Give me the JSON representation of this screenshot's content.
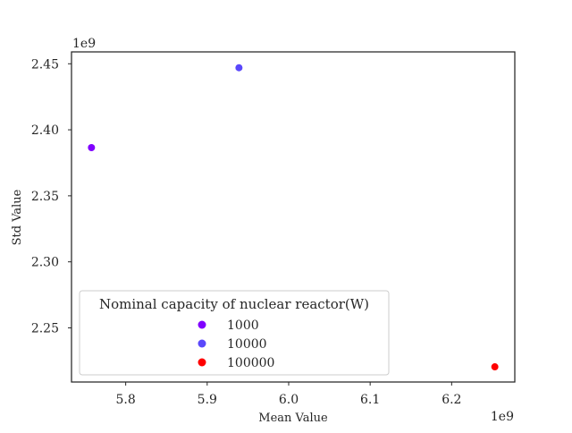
{
  "chart_data": {
    "type": "scatter",
    "xlabel": "Mean Value",
    "ylabel": "Std Value",
    "x_offset_label": "1e9",
    "y_offset_label": "1e9",
    "xlim": [
      5.7335,
      6.2775
    ],
    "ylim": [
      2.209,
      2.459
    ],
    "xticks": [
      5.8,
      5.9,
      6.0,
      6.1,
      6.2
    ],
    "xtick_labels": [
      "5.8",
      "5.9",
      "6.0",
      "6.1",
      "6.2"
    ],
    "yticks": [
      2.25,
      2.3,
      2.35,
      2.4,
      2.45
    ],
    "ytick_labels": [
      "2.25",
      "2.30",
      "2.35",
      "2.40",
      "2.45"
    ],
    "grid": false,
    "legend": {
      "title": "Nominal capacity of nuclear reactor(W)",
      "placement": "lower-left"
    },
    "series": [
      {
        "name": "1000",
        "color": "#8000ff",
        "points": [
          {
            "x": 5.758,
            "y": 2.3865
          }
        ]
      },
      {
        "name": "10000",
        "color": "#5a48fb",
        "points": [
          {
            "x": 5.939,
            "y": 2.447
          }
        ]
      },
      {
        "name": "100000",
        "color": "#ff0000",
        "points": [
          {
            "x": 6.253,
            "y": 2.2205
          }
        ]
      }
    ]
  }
}
